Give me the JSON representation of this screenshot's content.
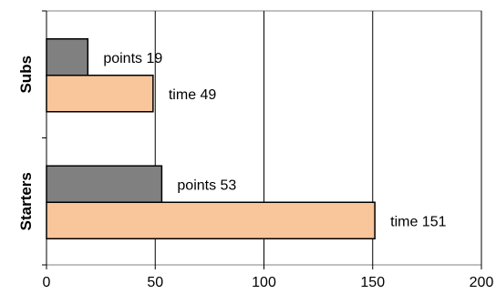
{
  "chart_data": {
    "type": "bar",
    "orientation": "horizontal",
    "categories": [
      "Starters",
      "Subs"
    ],
    "series": [
      {
        "labels": [
          "points 53",
          "points 19"
        ],
        "values": [
          53,
          19
        ],
        "color": "#808080"
      },
      {
        "labels": [
          "time 151",
          "time 49"
        ],
        "values": [
          151,
          49
        ],
        "color": "#f9c59b"
      }
    ],
    "xlim": [
      0,
      200
    ],
    "xticks": [
      "0",
      "50",
      "100",
      "150",
      "200"
    ],
    "grid": "vertical",
    "title": "",
    "xlabel": "",
    "ylabel": ""
  }
}
